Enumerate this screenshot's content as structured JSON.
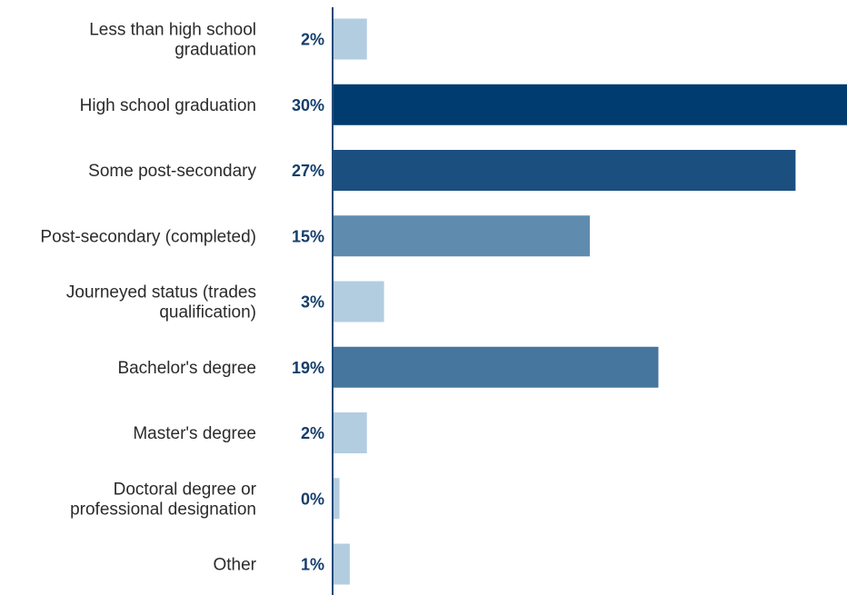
{
  "chart_data": {
    "type": "bar",
    "orientation": "horizontal",
    "title": "",
    "xlabel": "",
    "ylabel": "",
    "categories": [
      [
        "Less than high school",
        "graduation"
      ],
      [
        "High school graduation"
      ],
      [
        "Some post-secondary"
      ],
      [
        "Post-secondary (completed)"
      ],
      [
        "Journeyed status (trades",
        "qualification)"
      ],
      [
        "Bachelor's degree"
      ],
      [
        "Master's degree"
      ],
      [
        "Doctoral degree or",
        "professional designation"
      ],
      [
        "Other"
      ]
    ],
    "values": [
      2.0,
      30.0,
      27.0,
      15.0,
      3.0,
      19.0,
      2.0,
      0.4,
      1.0
    ],
    "value_labels": [
      "2%",
      "30%",
      "27%",
      "15%",
      "3%",
      "19%",
      "2%",
      "0%",
      "1%"
    ],
    "xlim": [
      0,
      30
    ],
    "grid": false,
    "legend": "none",
    "colors": {
      "label_text": "#2b2b2b",
      "value_text": "#143d6b",
      "axis": "#1f4a78",
      "bars": [
        "#b3cde0",
        "#003c6f",
        "#1b4f80",
        "#5f8cae",
        "#b3cde0",
        "#46769e",
        "#b3cde0",
        "#b3cde0",
        "#b3cde0"
      ]
    }
  }
}
